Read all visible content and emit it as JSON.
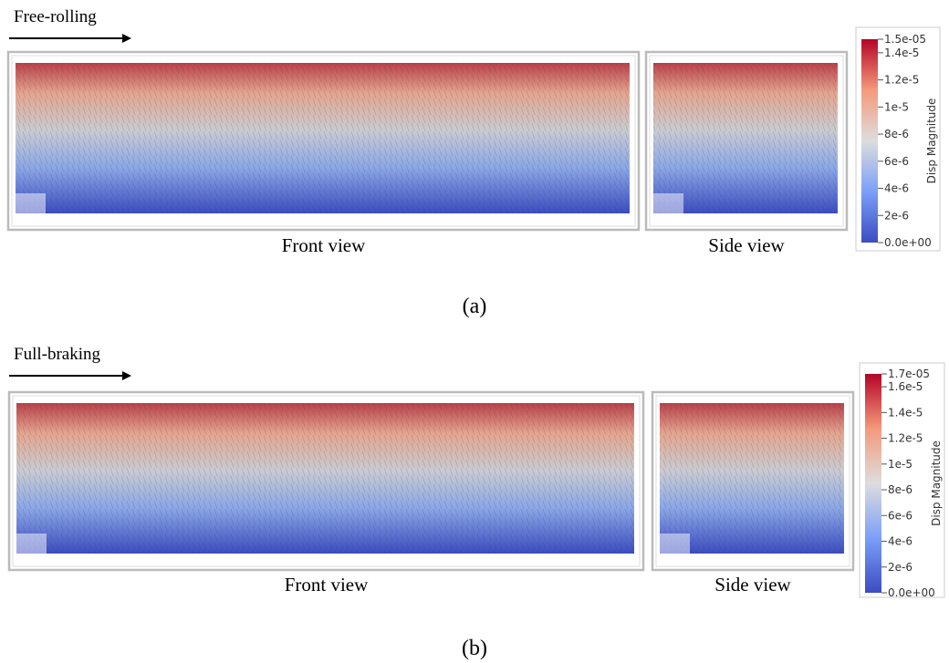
{
  "panels": [
    {
      "condition": "Free-rolling",
      "front_caption": "Front view",
      "side_caption": "Side view",
      "caption": "(a)",
      "colorbar": {
        "title": "Disp Magnitude",
        "lim": [
          0,
          1.5e-05
        ],
        "ticks": [
          {
            "value": 0,
            "label": "0.0e+00"
          },
          {
            "value": 2e-06,
            "label": "2e-6"
          },
          {
            "value": 4e-06,
            "label": "4e-6"
          },
          {
            "value": 6e-06,
            "label": "6e-6"
          },
          {
            "value": 8e-06,
            "label": "8e-6"
          },
          {
            "value": 1e-05,
            "label": "1e-5"
          },
          {
            "value": 1.2e-05,
            "label": "1.2e-5"
          },
          {
            "value": 1.4e-05,
            "label": "1.4e-5"
          },
          {
            "value": 1.5e-05,
            "label": "1.5e-05"
          }
        ]
      }
    },
    {
      "condition": "Full-braking",
      "front_caption": "Front view",
      "side_caption": "Side view",
      "caption": "(b)",
      "colorbar": {
        "title": "Disp Magnitude",
        "lim": [
          0,
          1.7e-05
        ],
        "ticks": [
          {
            "value": 0,
            "label": "0.0e+00"
          },
          {
            "value": 2e-06,
            "label": "2e-6"
          },
          {
            "value": 4e-06,
            "label": "4e-6"
          },
          {
            "value": 6e-06,
            "label": "6e-6"
          },
          {
            "value": 8e-06,
            "label": "8e-6"
          },
          {
            "value": 1e-05,
            "label": "1e-5"
          },
          {
            "value": 1.2e-05,
            "label": "1.2e-5"
          },
          {
            "value": 1.4e-05,
            "label": "1.4e-5"
          },
          {
            "value": 1.6e-05,
            "label": "1.6e-5"
          },
          {
            "value": 1.7e-05,
            "label": "1.7e-05"
          }
        ]
      }
    }
  ]
}
